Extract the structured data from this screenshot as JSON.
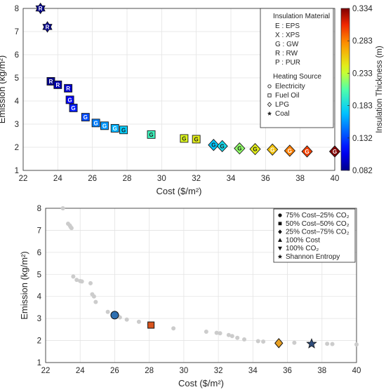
{
  "chart_data": [
    {
      "type": "scatter",
      "xlabel": "Cost ($/m²)",
      "ylabel": "Emission (kg/m²)",
      "xlim": [
        22,
        40
      ],
      "ylim": [
        1,
        8
      ],
      "xticks": [
        22,
        24,
        26,
        28,
        30,
        32,
        34,
        36,
        38,
        40
      ],
      "yticks": [
        1,
        2,
        3,
        4,
        5,
        6,
        7,
        8
      ],
      "grid": true,
      "legend_position": "top-right",
      "legend": {
        "material_title": "Insulation Material",
        "materials": [
          "E : EPS",
          "X : XPS",
          "G : GW",
          "R : RW",
          "P : PUR"
        ],
        "heating_title": "Heating Source",
        "heating": [
          {
            "shape": "circle",
            "label": "Electricity"
          },
          {
            "shape": "square",
            "label": "Fuel Oil"
          },
          {
            "shape": "diamond",
            "label": "LPG"
          },
          {
            "shape": "star",
            "label": "Coal"
          }
        ]
      },
      "colorbar": {
        "label": "Insulation Thickness (m)",
        "min": 0.082,
        "max": 0.334,
        "ticks": [
          "0.334",
          "0.283",
          "0.233",
          "0.183",
          "0.132",
          "0.082"
        ]
      },
      "points": [
        {
          "x": 23.0,
          "y": 8.0,
          "shape": "star",
          "letter": "R",
          "t": 0.082
        },
        {
          "x": 23.4,
          "y": 7.2,
          "shape": "star",
          "letter": "R",
          "t": 0.082
        },
        {
          "x": 23.6,
          "y": 4.85,
          "shape": "square",
          "letter": "R",
          "t": 0.082
        },
        {
          "x": 24.0,
          "y": 4.7,
          "shape": "square",
          "letter": "R",
          "t": 0.092
        },
        {
          "x": 24.6,
          "y": 4.55,
          "shape": "square",
          "letter": "R",
          "t": 0.1
        },
        {
          "x": 24.7,
          "y": 4.05,
          "shape": "square",
          "letter": "G",
          "t": 0.11
        },
        {
          "x": 24.9,
          "y": 3.7,
          "shape": "square",
          "letter": "G",
          "t": 0.12
        },
        {
          "x": 25.6,
          "y": 3.3,
          "shape": "square",
          "letter": "G",
          "t": 0.135
        },
        {
          "x": 26.2,
          "y": 3.05,
          "shape": "square",
          "letter": "G",
          "t": 0.15
        },
        {
          "x": 26.7,
          "y": 2.93,
          "shape": "square",
          "letter": "G",
          "t": 0.158
        },
        {
          "x": 27.3,
          "y": 2.82,
          "shape": "square",
          "letter": "G",
          "t": 0.166
        },
        {
          "x": 27.8,
          "y": 2.75,
          "shape": "square",
          "letter": "G",
          "t": 0.175
        },
        {
          "x": 29.4,
          "y": 2.55,
          "shape": "square",
          "letter": "G",
          "t": 0.2
        },
        {
          "x": 31.3,
          "y": 2.38,
          "shape": "square",
          "letter": "G",
          "t": 0.24
        },
        {
          "x": 32.0,
          "y": 2.35,
          "shape": "square",
          "letter": "G",
          "t": 0.245
        },
        {
          "x": 33.0,
          "y": 2.1,
          "shape": "diamond",
          "letter": "G",
          "t": 0.172
        },
        {
          "x": 33.5,
          "y": 2.05,
          "shape": "diamond",
          "letter": "G",
          "t": 0.182
        },
        {
          "x": 34.5,
          "y": 1.95,
          "shape": "diamond",
          "letter": "G",
          "t": 0.222
        },
        {
          "x": 35.4,
          "y": 1.92,
          "shape": "diamond",
          "letter": "G",
          "t": 0.245
        },
        {
          "x": 36.4,
          "y": 1.9,
          "shape": "diamond",
          "letter": "G",
          "t": 0.262
        },
        {
          "x": 37.4,
          "y": 1.85,
          "shape": "diamond",
          "letter": "G",
          "t": 0.285
        },
        {
          "x": 38.4,
          "y": 1.82,
          "shape": "diamond",
          "letter": "G",
          "t": 0.302
        },
        {
          "x": 40.0,
          "y": 1.82,
          "shape": "diamond",
          "letter": "G",
          "t": 0.334
        }
      ]
    },
    {
      "type": "scatter",
      "xlabel": "Cost ($/m²)",
      "ylabel": "Emission (kg/m²)",
      "xlim": [
        22,
        40
      ],
      "ylim": [
        1,
        8
      ],
      "xticks": [
        22,
        24,
        26,
        28,
        30,
        32,
        34,
        36,
        38,
        40
      ],
      "yticks": [
        1,
        2,
        3,
        4,
        5,
        6,
        7,
        8
      ],
      "grid": true,
      "legend_position": "top-right",
      "legend": [
        {
          "shape": "circle",
          "label": "75% Cost–25% CO₂"
        },
        {
          "shape": "square",
          "label": "50% Cost–50% CO₂"
        },
        {
          "shape": "diamond",
          "label": "25% Cost–75% CO₂"
        },
        {
          "shape": "triangle-up",
          "label": "100% Cost"
        },
        {
          "shape": "triangle-down",
          "label": "100% CO₂"
        },
        {
          "shape": "star",
          "label": "Shannon Entropy"
        }
      ],
      "pareto_points": [
        [
          23.0,
          8.0
        ],
        [
          23.3,
          7.3
        ],
        [
          23.4,
          7.22
        ],
        [
          23.45,
          7.15
        ],
        [
          23.5,
          7.1
        ],
        [
          23.6,
          4.9
        ],
        [
          23.8,
          4.75
        ],
        [
          24.0,
          4.7
        ],
        [
          24.1,
          4.68
        ],
        [
          24.6,
          4.6
        ],
        [
          24.7,
          4.1
        ],
        [
          24.8,
          4.0
        ],
        [
          24.9,
          3.75
        ],
        [
          25.6,
          3.3
        ],
        [
          26.2,
          3.1
        ],
        [
          26.3,
          3.05
        ],
        [
          26.7,
          2.95
        ],
        [
          27.4,
          2.85
        ],
        [
          28.0,
          2.75
        ],
        [
          29.4,
          2.55
        ],
        [
          31.3,
          2.4
        ],
        [
          31.9,
          2.35
        ],
        [
          32.1,
          2.33
        ],
        [
          32.6,
          2.25
        ],
        [
          32.8,
          2.2
        ],
        [
          33.1,
          2.12
        ],
        [
          33.5,
          2.05
        ],
        [
          34.3,
          1.97
        ],
        [
          34.6,
          1.95
        ],
        [
          36.4,
          1.9
        ],
        [
          38.3,
          1.85
        ],
        [
          38.6,
          1.84
        ],
        [
          40.0,
          1.82
        ]
      ],
      "highlights": [
        {
          "label": "75% Cost–25% CO₂",
          "shape": "circle",
          "x": 26.0,
          "y": 3.15,
          "color": "#2e6fb0"
        },
        {
          "label": "50% Cost–50% CO₂",
          "shape": "square",
          "x": 28.1,
          "y": 2.7,
          "color": "#d9541e"
        },
        {
          "label": "25% Cost–75% CO₂",
          "shape": "diamond",
          "x": 35.5,
          "y": 1.88,
          "color": "#e8a023"
        },
        {
          "label": "Shannon Entropy",
          "shape": "star",
          "x": 37.4,
          "y": 1.85,
          "color": "#2e4c7a"
        }
      ]
    }
  ]
}
